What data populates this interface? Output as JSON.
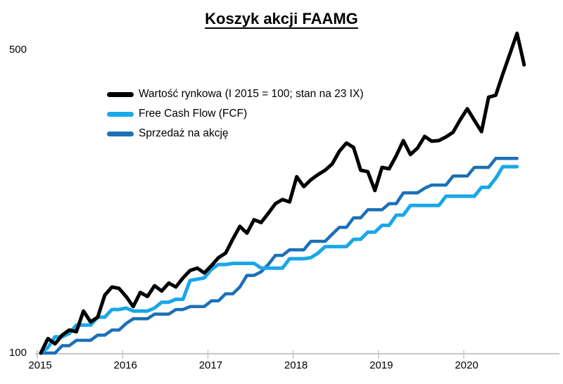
{
  "chart_data": {
    "type": "line",
    "title": "Koszyk akcji FAAMG",
    "x_unit": "month",
    "x_range": [
      "2015-01",
      "2020-09"
    ],
    "x_tick_labels": [
      "2015",
      "2016",
      "2017",
      "2018",
      "2019",
      "2020"
    ],
    "y_axis": {
      "scale": "log",
      "min": 100,
      "max": 560,
      "tick_values": [
        100,
        500
      ],
      "tick_labels": [
        "100",
        "500"
      ]
    },
    "grid": false,
    "legend_position": "top-left-inside",
    "base_note": "I 2015 = 100",
    "series": [
      {
        "name": "Wartość rynkowa (I 2015 = 100; stan na 23 IX)",
        "color": "#000000",
        "width": 5,
        "values": [
          100,
          108,
          105,
          110,
          113,
          112,
          125,
          118,
          121,
          136,
          142,
          141,
          135,
          128,
          138,
          135,
          143,
          139,
          145,
          142,
          149,
          155,
          157,
          153,
          159,
          166,
          170,
          183,
          196,
          189,
          203,
          200,
          210,
          221,
          226,
          223,
          255,
          242,
          251,
          258,
          264,
          273,
          292,
          305,
          298,
          264,
          262,
          237,
          268,
          266,
          285,
          309,
          287,
          297,
          316,
          308,
          309,
          315,
          323,
          345,
          366,
          344,
          324,
          389,
          393,
          440,
          490,
          546,
          462
        ]
      },
      {
        "name": "Free Cash Flow (FCF)",
        "color": "#19A7E8",
        "width": 5,
        "values": [
          100,
          103,
          109,
          109,
          111,
          116,
          116,
          116,
          121,
          121,
          126,
          126,
          127,
          125,
          125,
          125,
          127,
          131,
          131,
          133,
          133,
          147,
          148,
          149,
          156,
          160,
          160,
          161,
          161,
          161,
          161,
          157,
          157,
          157,
          157,
          165,
          165,
          165,
          166,
          170,
          176,
          176,
          176,
          176,
          183,
          183,
          190,
          190,
          197,
          197,
          208,
          208,
          219,
          219,
          219,
          219,
          219,
          230,
          230,
          230,
          230,
          230,
          241,
          241,
          253,
          269,
          269,
          269
        ]
      },
      {
        "name": "Sprzedaż na akcję",
        "color": "#1B70B7",
        "width": 4.5,
        "values": [
          100,
          100,
          100,
          104,
          104,
          107,
          107,
          107,
          110,
          110,
          113,
          113,
          117,
          120,
          120,
          120,
          123,
          123,
          123,
          126,
          126,
          128,
          128,
          128,
          132,
          132,
          137,
          137,
          142,
          151,
          151,
          154,
          160,
          168,
          168,
          173,
          173,
          173,
          181,
          181,
          181,
          188,
          195,
          195,
          205,
          205,
          214,
          214,
          214,
          221,
          221,
          234,
          234,
          234,
          240,
          244,
          244,
          244,
          256,
          256,
          256,
          268,
          268,
          268,
          281,
          281,
          281,
          281
        ]
      }
    ]
  }
}
